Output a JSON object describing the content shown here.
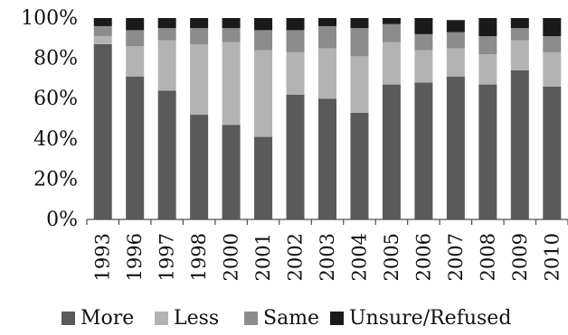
{
  "chart_data": {
    "type": "bar",
    "stacked": true,
    "categories": [
      "1993",
      "1996",
      "1997",
      "1998",
      "2000",
      "2001",
      "2002",
      "2003",
      "2004",
      "2005",
      "2006",
      "2007",
      "2008",
      "2009",
      "2010"
    ],
    "series": [
      {
        "name": "More",
        "color": "#5a5a5a",
        "values": [
          87,
          71,
          64,
          52,
          47,
          41,
          62,
          60,
          53,
          67,
          68,
          71,
          67,
          74,
          66
        ]
      },
      {
        "name": "Less",
        "color": "#b3b3b3",
        "values": [
          4,
          15,
          25,
          35,
          41,
          43,
          21,
          25,
          28,
          21,
          16,
          14,
          15,
          15,
          17
        ]
      },
      {
        "name": "Same",
        "color": "#8c8c8c",
        "values": [
          5,
          8,
          6,
          8,
          7,
          10,
          11,
          11,
          14,
          9,
          8,
          8,
          9,
          6,
          8
        ]
      },
      {
        "name": "Unsure/Refused",
        "color": "#1a1a1a",
        "values": [
          4,
          6,
          5,
          5,
          5,
          6,
          6,
          4,
          5,
          3,
          8,
          6,
          9,
          5,
          9
        ]
      }
    ],
    "y_ticks": [
      "0%",
      "20%",
      "40%",
      "60%",
      "80%",
      "100%"
    ],
    "ylim": [
      0,
      100
    ],
    "title": "",
    "xlabel": "",
    "ylabel": "",
    "grid": false,
    "legend_position": "bottom"
  }
}
